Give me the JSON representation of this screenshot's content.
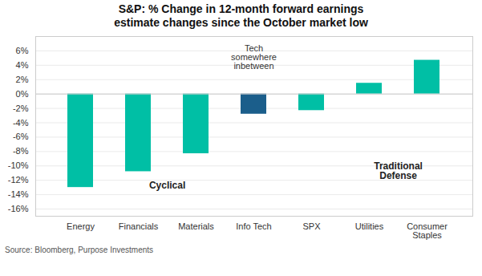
{
  "chart_data": {
    "type": "bar",
    "title": "S&P: % Change in 12-month forward earnings",
    "subtitle": "estimate changes since the October market low",
    "categories": [
      "Energy",
      "Financials",
      "Materials",
      "Info Tech",
      "SPX",
      "Utilities",
      "Consumer\nStaples"
    ],
    "values": [
      -13.0,
      -10.8,
      -8.3,
      -2.8,
      -2.3,
      1.5,
      4.7
    ],
    "colors": [
      "#00BFA5",
      "#00BFA5",
      "#00BFA5",
      "#1B5E8B",
      "#00BFA5",
      "#00BFA5",
      "#00BFA5"
    ],
    "ylim": [
      -17,
      8
    ],
    "yticks": [
      {
        "value": -16,
        "label": "-16%"
      },
      {
        "value": -14,
        "label": "-14%"
      },
      {
        "value": -12,
        "label": "-12%"
      },
      {
        "value": -10,
        "label": "-10%"
      },
      {
        "value": -8,
        "label": "-8%"
      },
      {
        "value": -6,
        "label": "-6%"
      },
      {
        "value": -4,
        "label": "-4%"
      },
      {
        "value": -2,
        "label": "-2%"
      },
      {
        "value": 0,
        "label": "0%"
      },
      {
        "value": 2,
        "label": "2%"
      },
      {
        "value": 4,
        "label": "4%"
      },
      {
        "value": 6,
        "label": "6%"
      }
    ],
    "grid": true,
    "annotations": [
      "Tech\nsomewhere\ninbetween",
      "Cyclical",
      "Traditional\nDefense"
    ],
    "caption": "Source: Bloomberg, Purpose Investments"
  }
}
